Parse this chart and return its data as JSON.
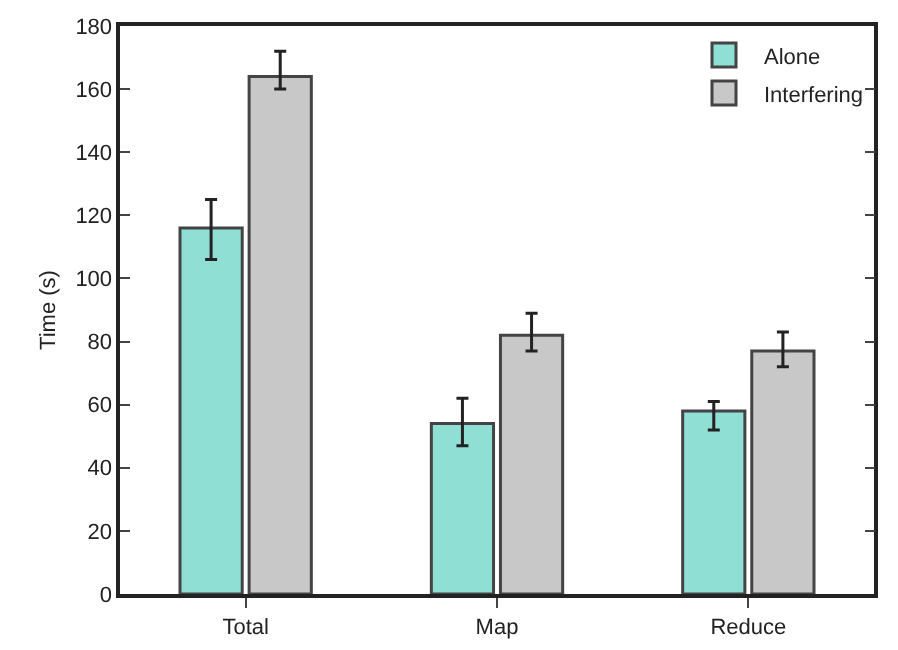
{
  "chart_data": {
    "type": "bar",
    "ylabel": "Time (s)",
    "categories": [
      "Total",
      "Map",
      "Reduce"
    ],
    "series": [
      {
        "name": "Alone",
        "color": "#8fdfd5",
        "values": [
          116,
          54,
          58
        ],
        "errors": [
          [
            106,
            125
          ],
          [
            47,
            62
          ],
          [
            52,
            61
          ]
        ]
      },
      {
        "name": "Interfering",
        "color": "#c8c8c8",
        "values": [
          164,
          82,
          77
        ],
        "errors": [
          [
            160,
            172
          ],
          [
            77,
            89
          ],
          [
            72,
            83
          ]
        ]
      }
    ],
    "ylim": [
      0,
      180
    ],
    "yticks": [
      0,
      20,
      40,
      60,
      80,
      100,
      120,
      140,
      160,
      180
    ],
    "grid": false,
    "legend": "top right"
  }
}
